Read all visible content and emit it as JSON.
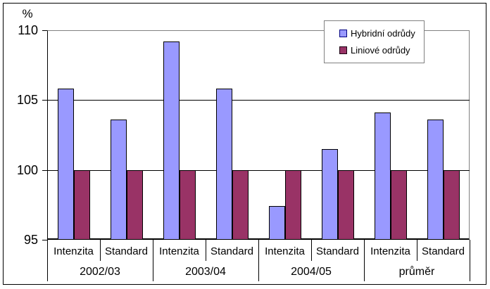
{
  "chart_data": {
    "type": "bar",
    "title": "",
    "ylabel": "%",
    "ylim": [
      95,
      110
    ],
    "yticks": [
      110,
      105,
      100,
      95
    ],
    "gridlines": [
      105,
      100
    ],
    "grid": true,
    "legend_position": "top-right",
    "groups": [
      "2002/03",
      "2003/04",
      "2004/05",
      "průměr"
    ],
    "subcategories": [
      "Intenzita",
      "Standard"
    ],
    "categories": [
      "Intenzita 2002/03",
      "Standard 2002/03",
      "Intenzita 2003/04",
      "Standard 2003/04",
      "Intenzita 2004/05",
      "Standard 2004/05",
      "Intenzita průměr",
      "Standard průměr"
    ],
    "series": [
      {
        "name": "Hybridní odrůdy",
        "color": "#9999FF",
        "marker_border": "#000080",
        "values": [
          105.8,
          103.6,
          109.2,
          105.8,
          97.4,
          101.5,
          104.1,
          103.6
        ]
      },
      {
        "name": "Liniové odrůdy",
        "color": "#993366",
        "marker_border": "#1a0011",
        "values": [
          100,
          100,
          100,
          100,
          100,
          100,
          100,
          100
        ]
      }
    ],
    "baseline": 100
  },
  "colors": {
    "axis": "#000000",
    "plot_border": "#808080",
    "text": "#000000",
    "background": "#ffffff"
  }
}
